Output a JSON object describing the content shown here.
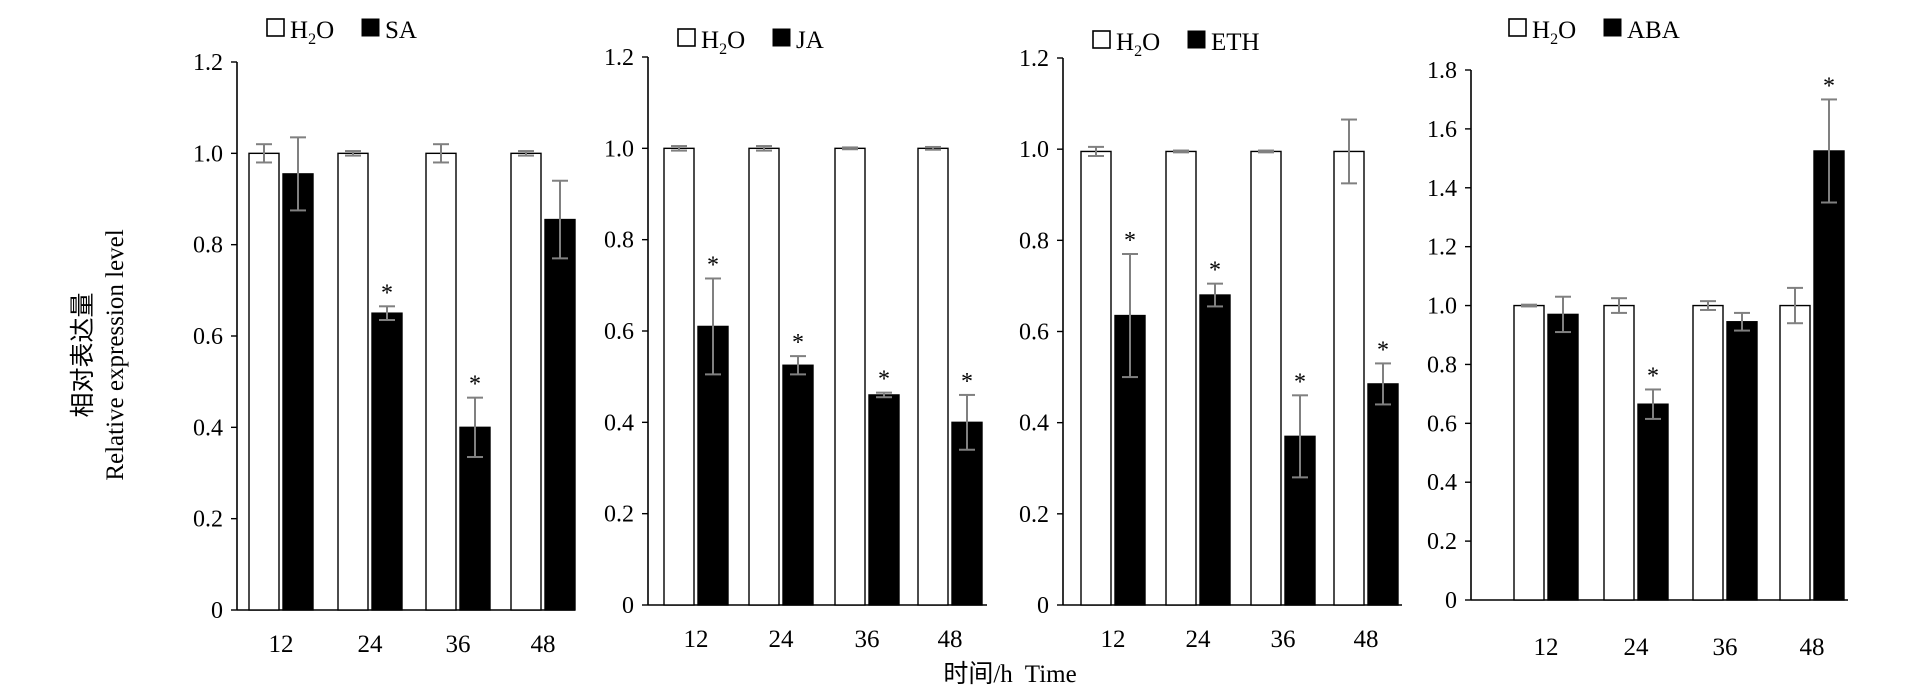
{
  "y_axis_label_cn": "相对表达量",
  "y_axis_label_en": "Relative expression level",
  "x_axis_label": "时间/h  Time",
  "colors": {
    "control": "#ffffff",
    "treatment": "#000000",
    "error_bar": "#808080"
  },
  "chart_data": [
    {
      "type": "bar",
      "categories": [
        "12",
        "24",
        "36",
        "48"
      ],
      "ylim": [
        0,
        1.2
      ],
      "yticks": [
        "0",
        "0.2",
        "0.4",
        "0.6",
        "0.8",
        "1.0",
        "1.2"
      ],
      "legend": {
        "control": [
          "H",
          "2",
          "O"
        ],
        "treatment": "SA"
      },
      "series": [
        {
          "name": "H2O",
          "values": [
            1.0,
            1.0,
            1.0,
            1.0
          ],
          "errors": [
            0.02,
            0.005,
            0.02,
            0.005
          ],
          "significant": [
            false,
            false,
            false,
            false
          ]
        },
        {
          "name": "SA",
          "values": [
            0.955,
            0.65,
            0.4,
            0.855
          ],
          "errors": [
            0.08,
            0.015,
            0.065,
            0.085
          ],
          "significant": [
            false,
            true,
            true,
            false
          ]
        }
      ]
    },
    {
      "type": "bar",
      "categories": [
        "12",
        "24",
        "36",
        "48"
      ],
      "ylim": [
        0,
        1.2
      ],
      "yticks": [
        "0",
        "0.2",
        "0.4",
        "0.6",
        "0.8",
        "1.0",
        "1.2"
      ],
      "legend": {
        "control": [
          "H",
          "2",
          "O"
        ],
        "treatment": "JA"
      },
      "series": [
        {
          "name": "H2O",
          "values": [
            1.0,
            1.0,
            1.0,
            1.0
          ],
          "errors": [
            0.005,
            0.005,
            0.002,
            0.003
          ],
          "significant": [
            false,
            false,
            false,
            false
          ]
        },
        {
          "name": "JA",
          "values": [
            0.61,
            0.525,
            0.46,
            0.4
          ],
          "errors": [
            0.105,
            0.02,
            0.005,
            0.06
          ],
          "significant": [
            true,
            true,
            true,
            true
          ]
        }
      ]
    },
    {
      "type": "bar",
      "categories": [
        "12",
        "24",
        "36",
        "48"
      ],
      "ylim": [
        0,
        1.2
      ],
      "yticks": [
        "0",
        "0.2",
        "0.4",
        "0.6",
        "0.8",
        "1.0",
        "1.2"
      ],
      "legend": {
        "control": [
          "H",
          "2",
          "O"
        ],
        "treatment": "ETH"
      },
      "series": [
        {
          "name": "H2O",
          "values": [
            0.995,
            0.995,
            0.995,
            0.995
          ],
          "errors": [
            0.01,
            0.002,
            0.002,
            0.07
          ],
          "significant": [
            false,
            false,
            false,
            false
          ]
        },
        {
          "name": "ETH",
          "values": [
            0.635,
            0.68,
            0.37,
            0.485
          ],
          "errors": [
            0.135,
            0.025,
            0.09,
            0.045
          ],
          "significant": [
            true,
            true,
            true,
            true
          ]
        }
      ]
    },
    {
      "type": "bar",
      "categories": [
        "12",
        "24",
        "36",
        "48"
      ],
      "ylim": [
        0,
        1.8
      ],
      "yticks": [
        "0",
        "0.2",
        "0.4",
        "0.6",
        "0.8",
        "1.0",
        "1.2",
        "1.4",
        "1.6",
        "1.8"
      ],
      "legend": {
        "control": [
          "H",
          "2",
          "O"
        ],
        "treatment": "ABA"
      },
      "series": [
        {
          "name": "H2O",
          "values": [
            1.0,
            1.0,
            1.0,
            1.0
          ],
          "errors": [
            0.003,
            0.025,
            0.015,
            0.06
          ],
          "significant": [
            false,
            false,
            false,
            false
          ]
        },
        {
          "name": "ABA",
          "values": [
            0.97,
            0.665,
            0.945,
            1.525
          ],
          "errors": [
            0.06,
            0.05,
            0.03,
            0.175
          ],
          "significant": [
            false,
            true,
            false,
            true
          ]
        }
      ]
    }
  ]
}
